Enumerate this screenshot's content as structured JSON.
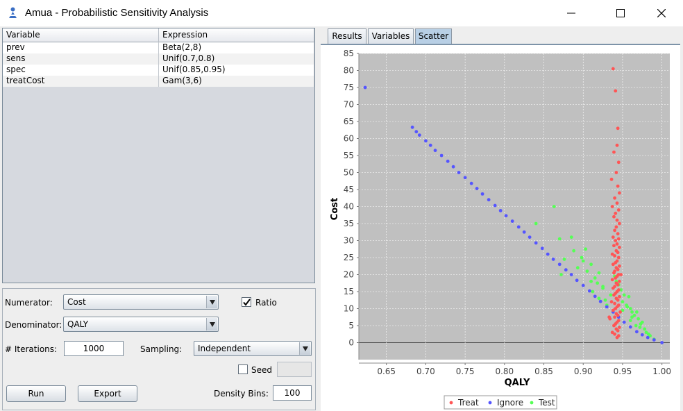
{
  "window": {
    "title": "Amua - Probabilistic Sensitivity Analysis"
  },
  "variables": {
    "headers": [
      "Variable",
      "Expression"
    ],
    "rows": [
      [
        "prev",
        "Beta(2,8)"
      ],
      [
        "sens",
        "Unif(0.7,0.8)"
      ],
      [
        "spec",
        "Unif(0.85,0.95)"
      ],
      [
        "treatCost",
        "Gam(3,6)"
      ]
    ]
  },
  "controls": {
    "numerator_label": "Numerator:",
    "numerator_value": "Cost",
    "ratio_label": "Ratio",
    "ratio_checked": true,
    "denominator_label": "Denominator:",
    "denominator_value": "QALY",
    "iterations_label": "# Iterations:",
    "iterations_value": "1000",
    "sampling_label": "Sampling:",
    "sampling_value": "Independent",
    "seed_label": "Seed",
    "seed_checked": false,
    "run_label": "Run",
    "export_label": "Export",
    "density_bins_label": "Density Bins:",
    "density_bins_value": "100"
  },
  "tabs": [
    {
      "label": "Results",
      "active": false
    },
    {
      "label": "Variables",
      "active": false
    },
    {
      "label": "Scatter",
      "active": true
    }
  ],
  "chart_data": {
    "type": "scatter",
    "xlabel": "QALY",
    "ylabel": "Cost",
    "xlim": [
      0.615,
      1.01
    ],
    "ylim": [
      -5,
      85
    ],
    "xticks": [
      "0.65",
      "0.70",
      "0.75",
      "0.80",
      "0.85",
      "0.90",
      "0.95",
      "1.00"
    ],
    "yticks": [
      "0",
      "5",
      "10",
      "15",
      "20",
      "25",
      "30",
      "35",
      "40",
      "45",
      "50",
      "55",
      "60",
      "65",
      "70",
      "75",
      "80",
      "85"
    ],
    "grid": true,
    "legend_position": "bottom",
    "series": [
      {
        "name": "Treat",
        "color": "#ff5555",
        "x": [
          0.938,
          0.941,
          0.944,
          0.943,
          0.939,
          0.945,
          0.942,
          0.936,
          0.944,
          0.946,
          0.94,
          0.943,
          0.937,
          0.945,
          0.941,
          0.939,
          0.943,
          0.946,
          0.942,
          0.94,
          0.944,
          0.938,
          0.945,
          0.941,
          0.943,
          0.939,
          0.946,
          0.942,
          0.944,
          0.937,
          0.94,
          0.945,
          0.943,
          0.941,
          0.938,
          0.946,
          0.942,
          0.944,
          0.94,
          0.939,
          0.945,
          0.943,
          0.941,
          0.937,
          0.946,
          0.942,
          0.944,
          0.94,
          0.938,
          0.945,
          0.943,
          0.941,
          0.939,
          0.946,
          0.942,
          0.944,
          0.936,
          0.94,
          0.945,
          0.943,
          0.941,
          0.938,
          0.947,
          0.942,
          0.944,
          0.94,
          0.934,
          0.945,
          0.943,
          0.941,
          0.939,
          0.946,
          0.942,
          0.944,
          0.937,
          0.94,
          0.945,
          0.943,
          0.933,
          0.948
        ],
        "y": [
          80.5,
          74,
          63,
          58,
          56,
          53,
          50,
          48,
          46,
          44,
          42.5,
          41,
          40,
          39,
          38,
          37,
          36,
          35,
          34,
          33,
          32,
          31,
          30.5,
          30,
          29,
          28.5,
          28,
          27,
          26.5,
          26,
          25.5,
          25,
          24,
          23.5,
          23,
          22.5,
          22,
          21.5,
          21,
          20.5,
          20,
          19.5,
          19,
          18.5,
          18,
          17.5,
          17,
          16.5,
          16,
          15.5,
          15,
          14.5,
          14,
          13.5,
          13,
          12.5,
          12,
          11.5,
          11,
          10.5,
          10,
          9.5,
          9,
          8.5,
          8,
          7.5,
          7,
          6.5,
          6,
          5.5,
          5,
          4.5,
          4,
          3.5,
          3,
          2.5,
          2,
          1.5,
          7.5,
          20
        ]
      },
      {
        "name": "Ignore",
        "color": "#5555ff",
        "x": [
          0.623,
          0.683,
          0.688,
          0.692,
          0.7,
          0.706,
          0.712,
          0.72,
          0.728,
          0.735,
          0.742,
          0.75,
          0.758,
          0.765,
          0.772,
          0.78,
          0.788,
          0.795,
          0.802,
          0.81,
          0.818,
          0.825,
          0.832,
          0.84,
          0.848,
          0.855,
          0.862,
          0.87,
          0.878,
          0.885,
          0.892,
          0.9,
          0.908,
          0.915,
          0.922,
          0.93,
          0.938,
          0.945,
          0.952,
          0.96,
          0.968,
          0.975,
          0.982,
          0.99,
          1.0
        ],
        "y": [
          75,
          63.3,
          62,
          61,
          59.3,
          58,
          56.5,
          55,
          53.3,
          51.7,
          50,
          48.5,
          46.8,
          45.3,
          43.7,
          42,
          40.3,
          38.8,
          37.3,
          35.7,
          34,
          32.5,
          31,
          29.3,
          27.7,
          26,
          24.5,
          23,
          21.4,
          20,
          18.3,
          16.8,
          15.2,
          13.6,
          12.1,
          10.5,
          9,
          7.5,
          6,
          4.6,
          3.2,
          2.3,
          1.5,
          0.8,
          0
        ]
      },
      {
        "name": "Test",
        "color": "#55ff55",
        "x": [
          0.863,
          0.84,
          0.87,
          0.885,
          0.888,
          0.876,
          0.872,
          0.9,
          0.905,
          0.893,
          0.91,
          0.918,
          0.925,
          0.912,
          0.92,
          0.935,
          0.93,
          0.928,
          0.95,
          0.955,
          0.96,
          0.962,
          0.965,
          0.97,
          0.975,
          0.958,
          0.948,
          0.952,
          0.967,
          0.972,
          0.98,
          0.985,
          0.99,
          0.978,
          0.968,
          0.945,
          0.942,
          0.94,
          0.956,
          0.962,
          0.973,
          0.983,
          0.96,
          0.95,
          0.92,
          0.91,
          0.898,
          0.903,
          0.915,
          0.925
        ],
        "y": [
          40,
          35,
          30.5,
          31,
          27,
          24.5,
          20,
          24,
          21,
          22,
          18,
          17.5,
          16,
          15,
          13,
          14,
          11,
          12.5,
          12,
          11,
          10,
          9,
          8,
          7,
          6,
          13.5,
          15.5,
          14,
          5,
          4.5,
          3,
          2,
          1,
          4,
          9,
          17,
          18,
          19.5,
          10.5,
          7.5,
          5.5,
          2.5,
          6.5,
          9.5,
          20.5,
          23,
          25,
          27.5,
          19,
          16.5
        ]
      }
    ]
  }
}
